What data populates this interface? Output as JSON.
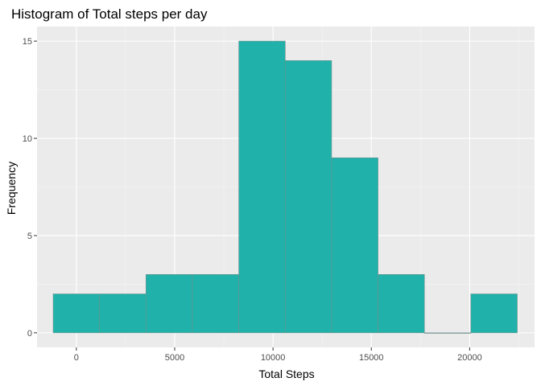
{
  "chart_data": {
    "type": "histogram",
    "title": "Histogram of Total steps per day",
    "xlabel": "Total Steps",
    "ylabel": "Frequency",
    "xlim": [
      -2000,
      23300
    ],
    "ylim": [
      -0.75,
      15.75
    ],
    "x_ticks": [
      0,
      5000,
      10000,
      15000,
      20000
    ],
    "x_tick_labels": [
      "0",
      "5000",
      "10000",
      "15000",
      "20000"
    ],
    "y_ticks": [
      0,
      5,
      10,
      15
    ],
    "y_tick_labels": [
      "0",
      "5",
      "10",
      "15"
    ],
    "bin_edges": [
      -1180,
      1180,
      3540,
      5900,
      8260,
      10620,
      12980,
      15340,
      17700,
      20060,
      22420
    ],
    "counts": [
      2,
      2,
      3,
      3,
      15,
      14,
      9,
      3,
      0,
      2
    ],
    "grid": true,
    "colors": {
      "bar_fill": "#20b2aa",
      "bar_stroke": "#6e8f8c",
      "panel_bg": "#ebebeb",
      "grid_major": "#ffffff",
      "grid_minor": "#f5f5f5"
    }
  }
}
